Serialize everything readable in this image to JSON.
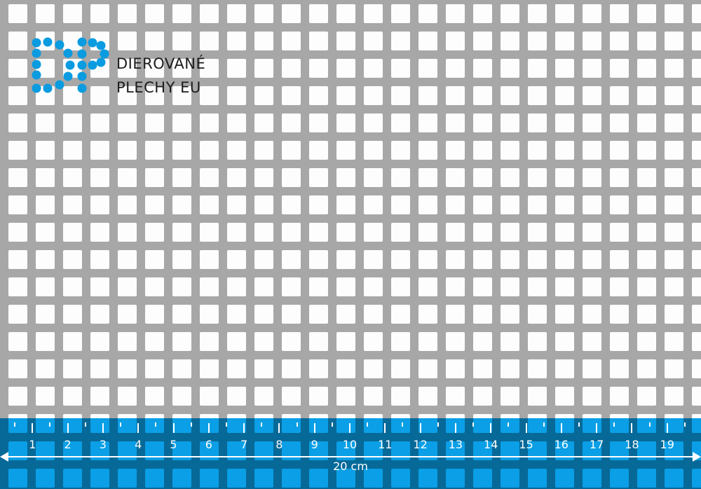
{
  "brand": {
    "line1": "DIEROVANÉ",
    "line2": "PLECHY EU",
    "logo_letters": "DP",
    "logo_color": "#0a9be0"
  },
  "ruler": {
    "labels": [
      "1",
      "2",
      "3",
      "4",
      "5",
      "6",
      "7",
      "8",
      "9",
      "10",
      "11",
      "12",
      "13",
      "14",
      "15",
      "16",
      "17",
      "18",
      "19"
    ],
    "length_label": "20 cm",
    "band_color": "#0a9be0"
  },
  "sheet": {
    "hole_shape": "square",
    "material_color": "#a7a7a7"
  }
}
